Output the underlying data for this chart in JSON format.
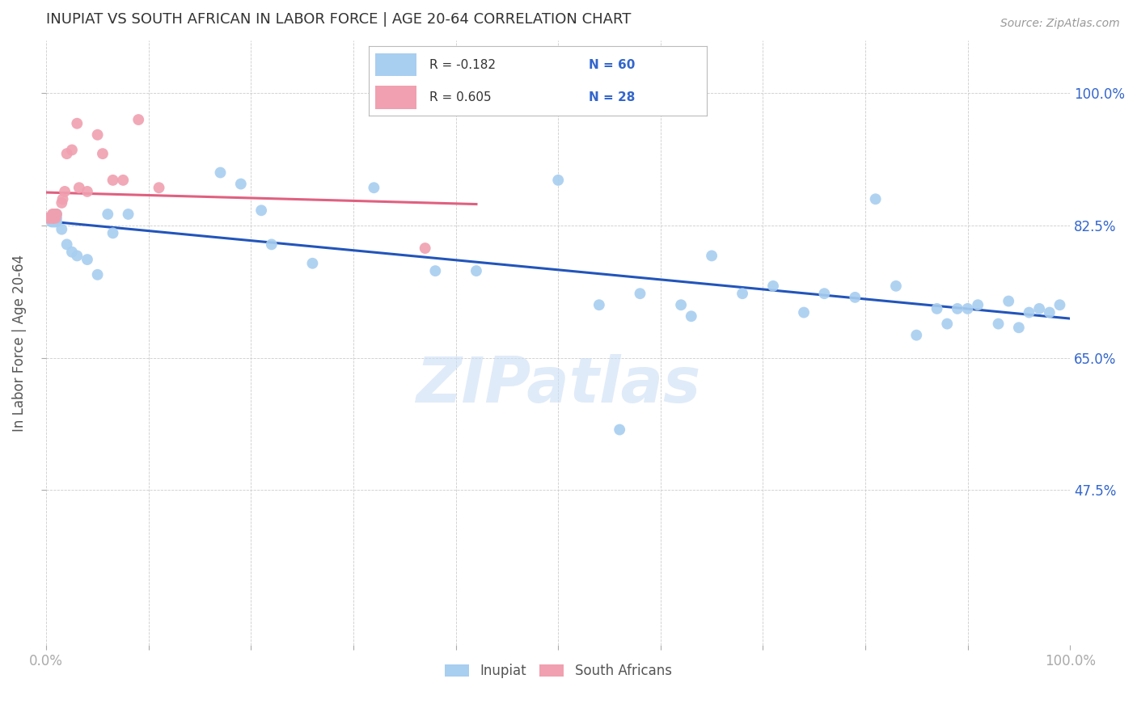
{
  "title": "INUPIAT VS SOUTH AFRICAN IN LABOR FORCE | AGE 20-64 CORRELATION CHART",
  "source": "Source: ZipAtlas.com",
  "ylabel": "In Labor Force | Age 20-64",
  "ytick_labels": [
    "100.0%",
    "82.5%",
    "65.0%",
    "47.5%"
  ],
  "ytick_values": [
    1.0,
    0.825,
    0.65,
    0.475
  ],
  "xlim": [
    0.0,
    1.0
  ],
  "ylim": [
    0.27,
    1.07
  ],
  "legend_r1": "R = -0.182",
  "legend_n1": "N = 60",
  "legend_r2": "R = 0.605",
  "legend_n2": "N = 28",
  "color_inupiat": "#a8cef0",
  "color_south_african": "#f0a0b0",
  "color_line_inupiat": "#2255bb",
  "color_line_south_african": "#e06080",
  "watermark": "ZIPatlas",
  "inupiat_x": [
    0.003,
    0.004,
    0.005,
    0.005,
    0.006,
    0.006,
    0.007,
    0.007,
    0.008,
    0.008,
    0.008,
    0.009,
    0.009,
    0.01,
    0.01,
    0.01,
    0.015,
    0.02,
    0.025,
    0.03,
    0.04,
    0.05,
    0.06,
    0.065,
    0.08,
    0.17,
    0.19,
    0.21,
    0.22,
    0.26,
    0.32,
    0.38,
    0.42,
    0.5,
    0.54,
    0.56,
    0.58,
    0.62,
    0.63,
    0.65,
    0.68,
    0.71,
    0.74,
    0.76,
    0.79,
    0.81,
    0.83,
    0.85,
    0.87,
    0.88,
    0.89,
    0.9,
    0.91,
    0.93,
    0.94,
    0.95,
    0.96,
    0.97,
    0.98,
    0.99
  ],
  "inupiat_y": [
    0.835,
    0.835,
    0.835,
    0.83,
    0.835,
    0.83,
    0.835,
    0.83,
    0.84,
    0.835,
    0.83,
    0.84,
    0.83,
    0.84,
    0.835,
    0.83,
    0.82,
    0.8,
    0.79,
    0.785,
    0.78,
    0.76,
    0.84,
    0.815,
    0.84,
    0.895,
    0.88,
    0.845,
    0.8,
    0.775,
    0.875,
    0.765,
    0.765,
    0.885,
    0.72,
    0.555,
    0.735,
    0.72,
    0.705,
    0.785,
    0.735,
    0.745,
    0.71,
    0.735,
    0.73,
    0.86,
    0.745,
    0.68,
    0.715,
    0.695,
    0.715,
    0.715,
    0.72,
    0.695,
    0.725,
    0.69,
    0.71,
    0.715,
    0.71,
    0.72
  ],
  "south_african_x": [
    0.002,
    0.003,
    0.004,
    0.005,
    0.006,
    0.006,
    0.007,
    0.007,
    0.008,
    0.008,
    0.009,
    0.009,
    0.01,
    0.015,
    0.016,
    0.018,
    0.02,
    0.025,
    0.03,
    0.032,
    0.04,
    0.05,
    0.055,
    0.065,
    0.075,
    0.09,
    0.11,
    0.37
  ],
  "south_african_y": [
    0.835,
    0.835,
    0.835,
    0.835,
    0.84,
    0.835,
    0.84,
    0.835,
    0.84,
    0.835,
    0.84,
    0.835,
    0.84,
    0.855,
    0.86,
    0.87,
    0.92,
    0.925,
    0.96,
    0.875,
    0.87,
    0.945,
    0.92,
    0.885,
    0.885,
    0.965,
    0.875,
    0.795
  ]
}
